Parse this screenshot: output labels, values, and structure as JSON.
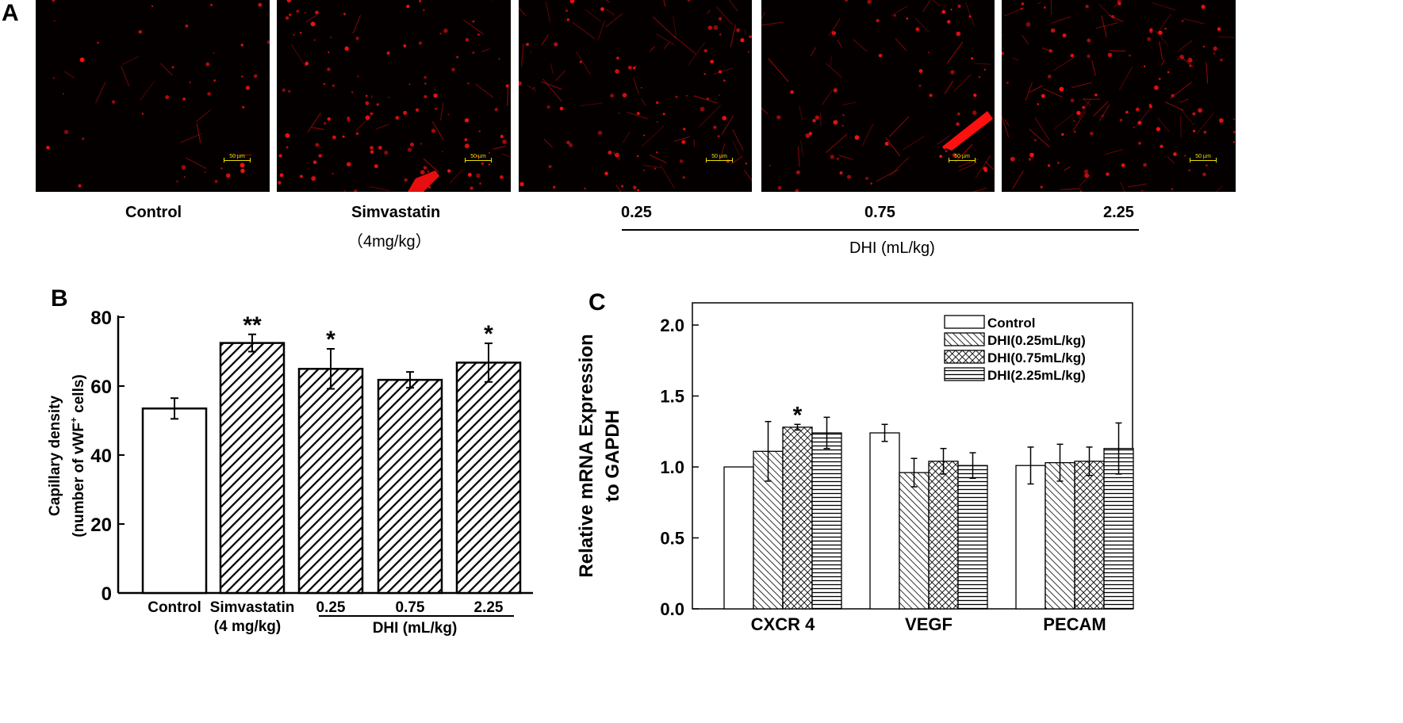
{
  "panel_a": {
    "letter": "A",
    "images": [
      {
        "scale_label": "50 µm",
        "caption": "Control",
        "caption2": ""
      },
      {
        "scale_label": "50 µm",
        "caption": "Simvastatin",
        "caption2": "（4mg/kg）"
      },
      {
        "scale_label": "50 µm",
        "caption": "0.25",
        "caption2": ""
      },
      {
        "scale_label": "50 µm",
        "caption": "0.75",
        "caption2": ""
      },
      {
        "scale_label": "50 µm",
        "caption": "2.25",
        "caption2": ""
      }
    ],
    "group_label": "DHI (mL/kg)",
    "colors": {
      "stain": "#ff1010",
      "background": "#050000",
      "scalebar": "#e8e000"
    }
  },
  "chart_data": [
    {
      "panel": "B",
      "type": "bar",
      "ylabel_line1": "Capillary density",
      "ylabel_line2": "(number of vWF",
      "ylabel_sup": "+",
      "ylabel_tail": " cells)",
      "ylim": [
        0,
        80
      ],
      "yticks": [
        0,
        20,
        40,
        60,
        80
      ],
      "categories": [
        "Control",
        "Simvastatin",
        "0.25",
        "0.75",
        "2.25"
      ],
      "category_sublabels": [
        "",
        "(4 mg/kg)",
        "",
        "",
        ""
      ],
      "group_label": "DHI (mL/kg)",
      "values": [
        53.5,
        72.5,
        65,
        61.8,
        66.8
      ],
      "errors": [
        3,
        2.5,
        5.8,
        2.3,
        5.6
      ],
      "significance": [
        "",
        "**",
        "*",
        "",
        "*"
      ],
      "fill": [
        "white",
        "hatch",
        "hatch",
        "hatch",
        "hatch"
      ]
    },
    {
      "panel": "C",
      "type": "bar",
      "ylabel_line1": "Relative mRNA Expression",
      "ylabel_line2": "to GAPDH",
      "ylim": [
        0,
        2
      ],
      "yticks": [
        "0.0",
        "0.5",
        "1.0",
        "1.5",
        "2.0"
      ],
      "categories": [
        "CXCR 4",
        "VEGF",
        "PECAM"
      ],
      "series": [
        {
          "name": "Control",
          "values": [
            1.0,
            1.24,
            1.01
          ],
          "errors": [
            0,
            0.06,
            0.13
          ],
          "significance": [
            "",
            "",
            ""
          ]
        },
        {
          "name": "DHI(0.25mL/kg)",
          "values": [
            1.11,
            0.96,
            1.03
          ],
          "errors": [
            0.21,
            0.1,
            0.13
          ],
          "significance": [
            "",
            "",
            ""
          ]
        },
        {
          "name": "DHI(0.75mL/kg)",
          "values": [
            1.28,
            1.04,
            1.04
          ],
          "errors": [
            0.02,
            0.09,
            0.1
          ],
          "significance": [
            "*",
            "",
            ""
          ]
        },
        {
          "name": "DHI(2.25mL/kg)",
          "values": [
            1.24,
            1.01,
            1.13
          ],
          "errors": [
            0.11,
            0.09,
            0.18
          ],
          "significance": [
            "",
            "",
            ""
          ]
        }
      ],
      "legend_placement": "top-right"
    }
  ]
}
